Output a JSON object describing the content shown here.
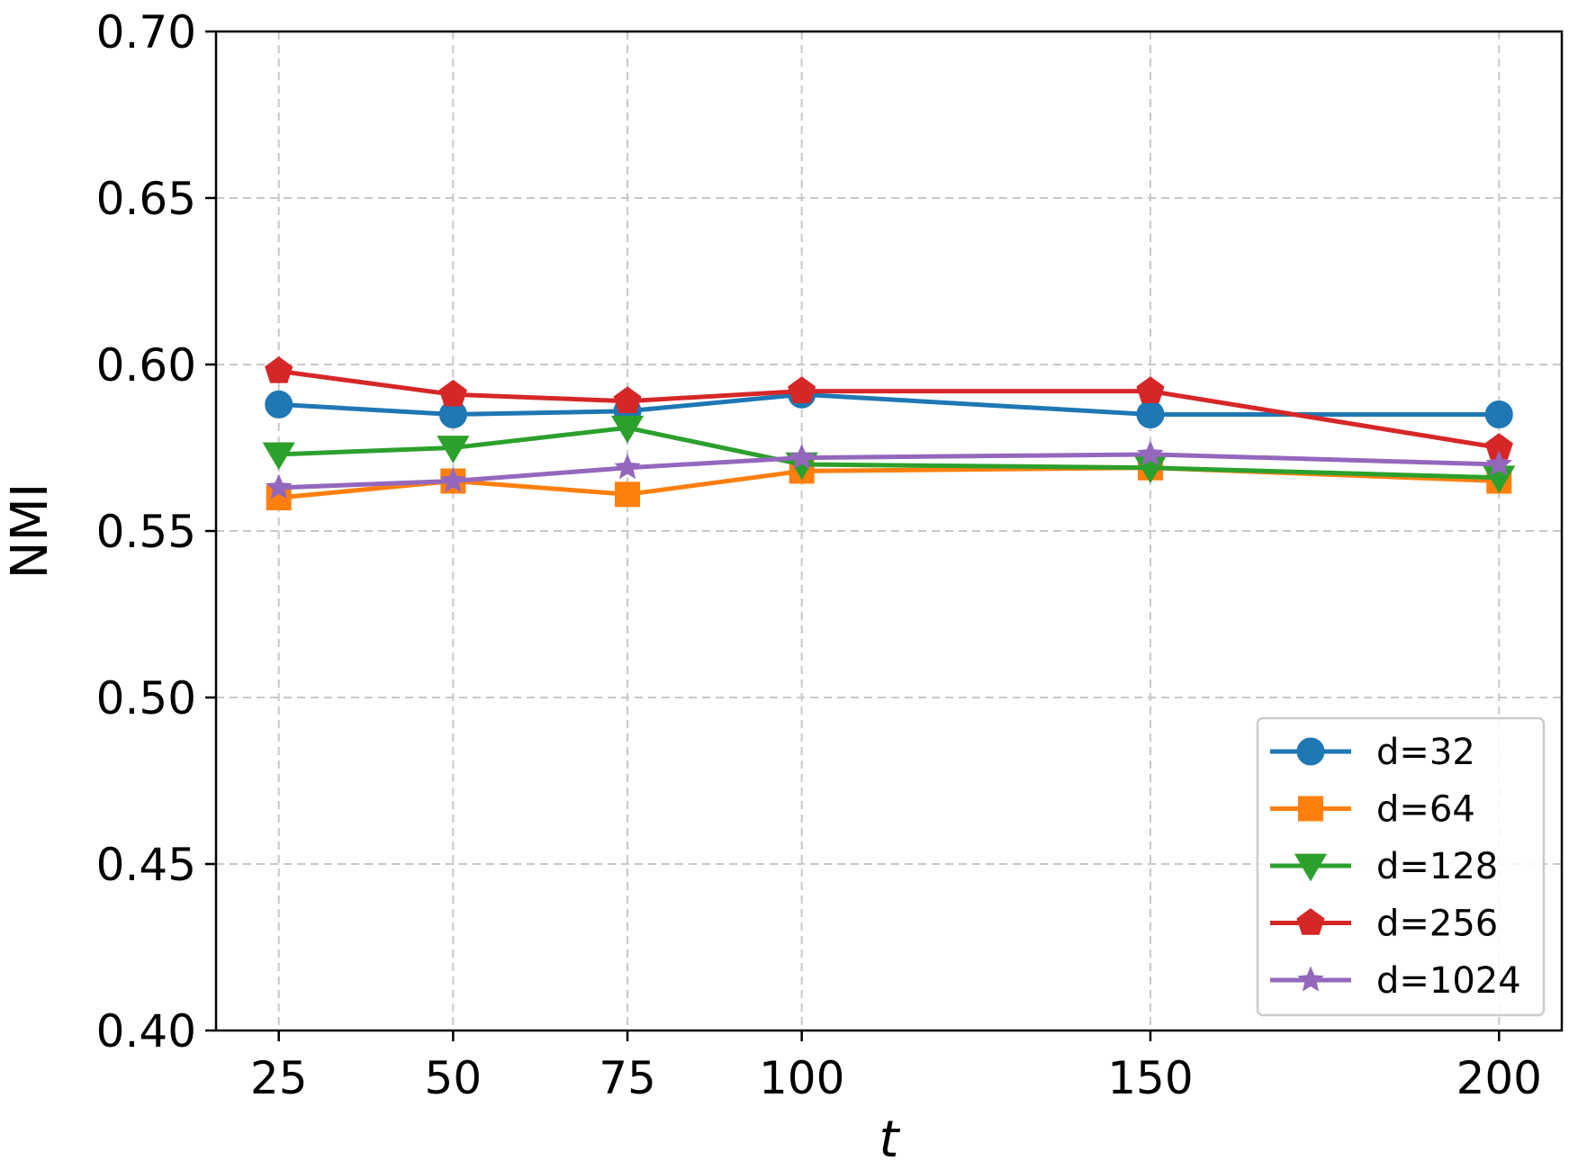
{
  "chart_data": {
    "type": "line",
    "title": "",
    "xlabel": "t",
    "ylabel": "NMI",
    "x": [
      25,
      50,
      75,
      100,
      150,
      200
    ],
    "x_tick_labels": [
      "25",
      "50",
      "75",
      "100",
      "150",
      "200"
    ],
    "xlim": [
      16,
      209
    ],
    "ylim": [
      0.4,
      0.7
    ],
    "y_ticks": [
      0.4,
      0.45,
      0.5,
      0.55,
      0.6,
      0.65,
      0.7
    ],
    "y_tick_labels": [
      "0.40",
      "0.45",
      "0.50",
      "0.55",
      "0.60",
      "0.65",
      "0.70"
    ],
    "grid": true,
    "legend_position": "lower-right",
    "series": [
      {
        "name": "d=32",
        "color": "#1f77b4",
        "marker": "circle",
        "values": [
          0.588,
          0.585,
          0.586,
          0.591,
          0.585,
          0.585
        ]
      },
      {
        "name": "d=64",
        "color": "#ff7f0e",
        "marker": "square",
        "values": [
          0.56,
          0.565,
          0.561,
          0.568,
          0.569,
          0.565
        ]
      },
      {
        "name": "d=128",
        "color": "#2ca02c",
        "marker": "triangle-down",
        "values": [
          0.573,
          0.575,
          0.581,
          0.57,
          0.569,
          0.566
        ]
      },
      {
        "name": "d=256",
        "color": "#d62728",
        "marker": "pentagon",
        "values": [
          0.598,
          0.591,
          0.589,
          0.592,
          0.592,
          0.575
        ]
      },
      {
        "name": "d=1024",
        "color": "#9467bd",
        "marker": "star",
        "values": [
          0.563,
          0.565,
          0.569,
          0.572,
          0.573,
          0.57
        ]
      }
    ]
  }
}
